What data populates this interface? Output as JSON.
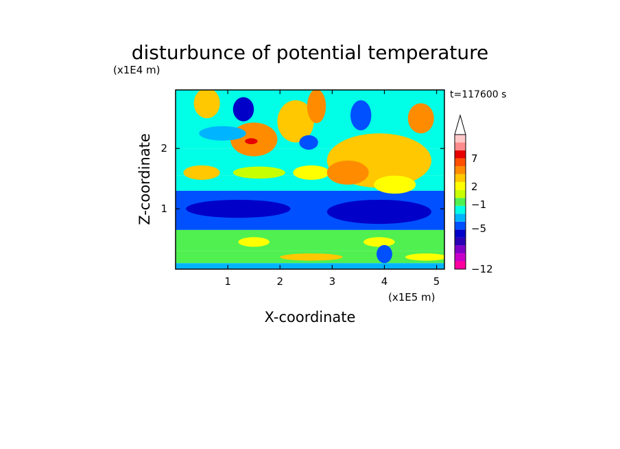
{
  "chart_data": {
    "type": "heatmap",
    "title": "disturbunce of potential temperature",
    "xlabel": "X-coordinate",
    "ylabel": "Z-coordinate",
    "x_unit": "(x1E5 m)",
    "y_unit": "(x1E4 m)",
    "time_label": "t=117600 s",
    "xlim": [
      0,
      5.15
    ],
    "ylim": [
      0,
      2.97
    ],
    "x_ticks": [
      1,
      2,
      3,
      4,
      5
    ],
    "y_ticks": [
      1,
      2
    ],
    "colorbar": {
      "labels": [
        {
          "value": 7,
          "text": "7"
        },
        {
          "value": 2,
          "text": "2"
        },
        {
          "value": -1,
          "text": "−1"
        },
        {
          "value": -5,
          "text": "−5"
        },
        {
          "value": -12,
          "text": "−12"
        }
      ],
      "colors": [
        "#ff00a0",
        "#c800c8",
        "#8000c8",
        "#2a00b4",
        "#0000c8",
        "#0050ff",
        "#00b4ff",
        "#00ffe6",
        "#50f050",
        "#c8ff00",
        "#ffff00",
        "#ffc800",
        "#ff8c00",
        "#ff5000",
        "#e60000",
        "#ff8c8c",
        "#ffc8c8"
      ],
      "extend_top": "#ffffff"
    },
    "field_layers": [
      {
        "z": [
          0.0,
          0.1
        ],
        "color": "#00b4ff"
      },
      {
        "z": [
          0.1,
          0.3
        ],
        "color": "#50f050"
      },
      {
        "z": [
          0.3,
          0.65
        ],
        "color": "#50f050"
      },
      {
        "z": [
          0.65,
          1.3
        ],
        "color": "#0050ff"
      },
      {
        "z": [
          1.3,
          1.55
        ],
        "color": "#00ffe6"
      },
      {
        "z": [
          1.55,
          2.0
        ],
        "color": "#00ffe6"
      },
      {
        "z": [
          2.0,
          2.97
        ],
        "color": "#00ffe6"
      }
    ],
    "blobs": [
      {
        "x": 0.6,
        "z": 2.75,
        "rx": 0.25,
        "rz": 0.25,
        "color": "#ffc800"
      },
      {
        "x": 1.3,
        "z": 2.65,
        "rx": 0.2,
        "rz": 0.2,
        "color": "#0000c8"
      },
      {
        "x": 1.5,
        "z": 2.15,
        "rx": 0.45,
        "rz": 0.28,
        "color": "#ff8c00"
      },
      {
        "x": 1.45,
        "z": 2.12,
        "rx": 0.12,
        "rz": 0.05,
        "color": "#e60000"
      },
      {
        "x": 2.3,
        "z": 2.45,
        "rx": 0.35,
        "rz": 0.35,
        "color": "#ffc800"
      },
      {
        "x": 2.7,
        "z": 2.7,
        "rx": 0.18,
        "rz": 0.28,
        "color": "#ff8c00"
      },
      {
        "x": 0.9,
        "z": 2.25,
        "rx": 0.45,
        "rz": 0.12,
        "color": "#00b4ff"
      },
      {
        "x": 0.5,
        "z": 1.6,
        "rx": 0.35,
        "rz": 0.12,
        "color": "#ffc800"
      },
      {
        "x": 2.6,
        "z": 1.6,
        "rx": 0.35,
        "rz": 0.12,
        "color": "#ffff00"
      },
      {
        "x": 1.6,
        "z": 1.6,
        "rx": 0.5,
        "rz": 0.1,
        "color": "#c8ff00"
      },
      {
        "x": 3.9,
        "z": 1.8,
        "rx": 1.0,
        "rz": 0.45,
        "color": "#ffc800"
      },
      {
        "x": 3.3,
        "z": 1.6,
        "rx": 0.4,
        "rz": 0.2,
        "color": "#ff8c00"
      },
      {
        "x": 4.2,
        "z": 1.4,
        "rx": 0.4,
        "rz": 0.15,
        "color": "#ffff00"
      },
      {
        "x": 2.55,
        "z": 2.1,
        "rx": 0.18,
        "rz": 0.12,
        "color": "#0050ff"
      },
      {
        "x": 3.55,
        "z": 2.55,
        "rx": 0.2,
        "rz": 0.25,
        "color": "#0050ff"
      },
      {
        "x": 4.7,
        "z": 2.5,
        "rx": 0.25,
        "rz": 0.25,
        "color": "#ff8c00"
      },
      {
        "x": 1.2,
        "z": 1.0,
        "rx": 1.0,
        "rz": 0.15,
        "color": "#0000c8"
      },
      {
        "x": 3.9,
        "z": 0.95,
        "rx": 1.0,
        "rz": 0.2,
        "color": "#0000c8"
      },
      {
        "x": 1.5,
        "z": 0.45,
        "rx": 0.3,
        "rz": 0.08,
        "color": "#ffff00"
      },
      {
        "x": 3.9,
        "z": 0.45,
        "rx": 0.3,
        "rz": 0.08,
        "color": "#ffff00"
      },
      {
        "x": 2.6,
        "z": 0.2,
        "rx": 0.6,
        "rz": 0.06,
        "color": "#ffc800"
      },
      {
        "x": 4.8,
        "z": 0.2,
        "rx": 0.4,
        "rz": 0.06,
        "color": "#ffff00"
      },
      {
        "x": 4.0,
        "z": 0.25,
        "rx": 0.15,
        "rz": 0.15,
        "color": "#0050ff"
      }
    ]
  }
}
